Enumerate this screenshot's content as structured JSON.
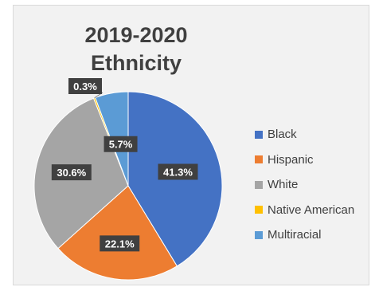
{
  "chart_data": {
    "type": "pie",
    "title": [
      "2019-2020",
      "Ethnicity"
    ],
    "categories": [
      "Black",
      "Hispanic",
      "White",
      "Native American",
      "Multiracial"
    ],
    "values": [
      41.3,
      22.1,
      30.6,
      0.3,
      5.7
    ],
    "data_labels": [
      "41.3%",
      "22.1%",
      "30.6%",
      "0.3%",
      "5.7%"
    ],
    "colors": [
      "#4472c4",
      "#ed7d31",
      "#a5a5a5",
      "#ffc000",
      "#5b9bd5"
    ],
    "legend_position": "right"
  }
}
